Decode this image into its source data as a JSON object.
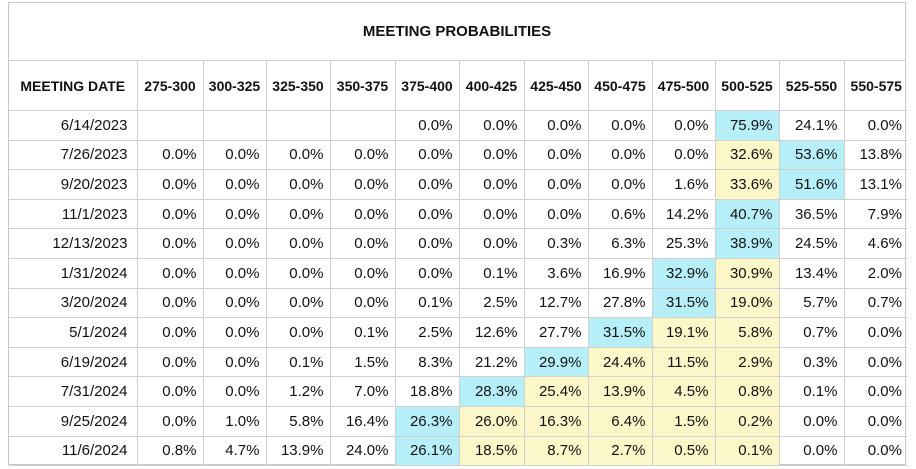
{
  "title": "MEETING PROBABILITIES",
  "columns": [
    "MEETING DATE",
    "275-300",
    "300-325",
    "325-350",
    "350-375",
    "375-400",
    "400-425",
    "425-450",
    "450-475",
    "475-500",
    "500-525",
    "525-550",
    "550-575"
  ],
  "colors": {
    "most_likely": "#b7eff8",
    "elevated": "#fbf7c8",
    "border": "#d0d0d0"
  },
  "rows": [
    {
      "date": "6/14/2023",
      "values": [
        "",
        "",
        "",
        "",
        "0.0%",
        "0.0%",
        "0.0%",
        "0.0%",
        "0.0%",
        "75.9%",
        "24.1%",
        "0.0%"
      ],
      "styles": [
        "",
        "",
        "",
        "",
        "",
        "",
        "",
        "",
        "",
        "cur",
        "",
        ""
      ]
    },
    {
      "date": "7/26/2023",
      "values": [
        "0.0%",
        "0.0%",
        "0.0%",
        "0.0%",
        "0.0%",
        "0.0%",
        "0.0%",
        "0.0%",
        "0.0%",
        "32.6%",
        "53.6%",
        "13.8%"
      ],
      "styles": [
        "",
        "",
        "",
        "",
        "",
        "",
        "",
        "",
        "",
        "hi",
        "cur",
        ""
      ]
    },
    {
      "date": "9/20/2023",
      "values": [
        "0.0%",
        "0.0%",
        "0.0%",
        "0.0%",
        "0.0%",
        "0.0%",
        "0.0%",
        "0.0%",
        "1.6%",
        "33.6%",
        "51.6%",
        "13.1%"
      ],
      "styles": [
        "",
        "",
        "",
        "",
        "",
        "",
        "",
        "",
        "",
        "hi",
        "cur",
        ""
      ]
    },
    {
      "date": "11/1/2023",
      "values": [
        "0.0%",
        "0.0%",
        "0.0%",
        "0.0%",
        "0.0%",
        "0.0%",
        "0.0%",
        "0.6%",
        "14.2%",
        "40.7%",
        "36.5%",
        "7.9%"
      ],
      "styles": [
        "",
        "",
        "",
        "",
        "",
        "",
        "",
        "",
        "",
        "cur",
        "",
        ""
      ]
    },
    {
      "date": "12/13/2023",
      "values": [
        "0.0%",
        "0.0%",
        "0.0%",
        "0.0%",
        "0.0%",
        "0.0%",
        "0.3%",
        "6.3%",
        "25.3%",
        "38.9%",
        "24.5%",
        "4.6%"
      ],
      "styles": [
        "",
        "",
        "",
        "",
        "",
        "",
        "",
        "",
        "",
        "cur",
        "",
        ""
      ]
    },
    {
      "date": "1/31/2024",
      "values": [
        "0.0%",
        "0.0%",
        "0.0%",
        "0.0%",
        "0.0%",
        "0.1%",
        "3.6%",
        "16.9%",
        "32.9%",
        "30.9%",
        "13.4%",
        "2.0%"
      ],
      "styles": [
        "",
        "",
        "",
        "",
        "",
        "",
        "",
        "",
        "cur",
        "hi",
        "",
        ""
      ]
    },
    {
      "date": "3/20/2024",
      "values": [
        "0.0%",
        "0.0%",
        "0.0%",
        "0.0%",
        "0.1%",
        "2.5%",
        "12.7%",
        "27.8%",
        "31.5%",
        "19.0%",
        "5.7%",
        "0.7%"
      ],
      "styles": [
        "",
        "",
        "",
        "",
        "",
        "",
        "",
        "",
        "cur",
        "hi",
        "",
        ""
      ]
    },
    {
      "date": "5/1/2024",
      "values": [
        "0.0%",
        "0.0%",
        "0.0%",
        "0.1%",
        "2.5%",
        "12.6%",
        "27.7%",
        "31.5%",
        "19.1%",
        "5.8%",
        "0.7%",
        "0.0%"
      ],
      "styles": [
        "",
        "",
        "",
        "",
        "",
        "",
        "",
        "cur",
        "hi",
        "hi",
        "",
        ""
      ]
    },
    {
      "date": "6/19/2024",
      "values": [
        "0.0%",
        "0.0%",
        "0.1%",
        "1.5%",
        "8.3%",
        "21.2%",
        "29.9%",
        "24.4%",
        "11.5%",
        "2.9%",
        "0.3%",
        "0.0%"
      ],
      "styles": [
        "",
        "",
        "",
        "",
        "",
        "",
        "cur",
        "hi",
        "hi",
        "hi",
        "",
        ""
      ]
    },
    {
      "date": "7/31/2024",
      "values": [
        "0.0%",
        "0.0%",
        "1.2%",
        "7.0%",
        "18.8%",
        "28.3%",
        "25.4%",
        "13.9%",
        "4.5%",
        "0.8%",
        "0.1%",
        "0.0%"
      ],
      "styles": [
        "",
        "",
        "",
        "",
        "",
        "cur",
        "hi",
        "hi",
        "hi",
        "hi",
        "",
        ""
      ]
    },
    {
      "date": "9/25/2024",
      "values": [
        "0.0%",
        "1.0%",
        "5.8%",
        "16.4%",
        "26.3%",
        "26.0%",
        "16.3%",
        "6.4%",
        "1.5%",
        "0.2%",
        "0.0%",
        "0.0%"
      ],
      "styles": [
        "",
        "",
        "",
        "",
        "cur",
        "hi",
        "hi",
        "hi",
        "hi",
        "hi",
        "",
        ""
      ]
    },
    {
      "date": "11/6/2024",
      "values": [
        "0.8%",
        "4.7%",
        "13.9%",
        "24.0%",
        "26.1%",
        "18.5%",
        "8.7%",
        "2.7%",
        "0.5%",
        "0.1%",
        "0.0%",
        "0.0%"
      ],
      "styles": [
        "",
        "",
        "",
        "",
        "cur",
        "hi",
        "hi",
        "hi",
        "hi",
        "hi",
        "",
        ""
      ]
    }
  ]
}
